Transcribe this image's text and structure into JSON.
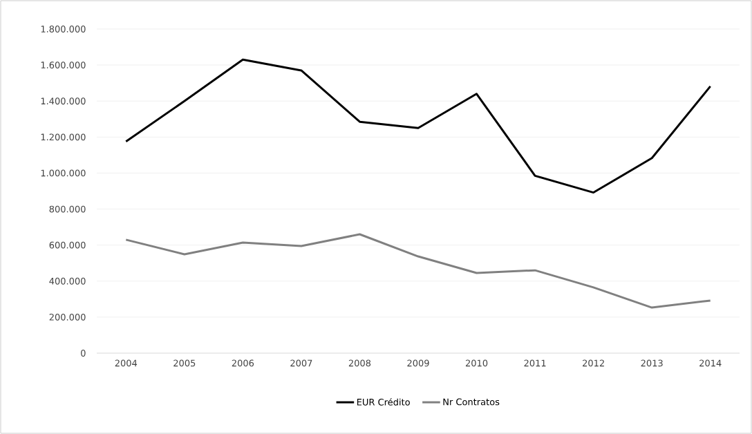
{
  "chart_data": {
    "type": "line",
    "categories": [
      "2004",
      "2005",
      "2006",
      "2007",
      "2008",
      "2009",
      "2010",
      "2011",
      "2012",
      "2013",
      "2014"
    ],
    "series": [
      {
        "name": "EUR Crédito",
        "color": "#000000",
        "values": [
          1175000,
          1400000,
          1630000,
          1570000,
          1285000,
          1250000,
          1440000,
          985000,
          892000,
          1083000,
          1482000
        ]
      },
      {
        "name": "Nr Contratos",
        "color": "#808080",
        "values": [
          630000,
          549000,
          614000,
          595000,
          660000,
          537000,
          445000,
          460000,
          365000,
          253000,
          292000
        ]
      }
    ],
    "ylim": [
      0,
      1800000
    ],
    "yticks": [
      {
        "value": 0,
        "label": "0"
      },
      {
        "value": 200000,
        "label": "200.000"
      },
      {
        "value": 400000,
        "label": "400.000"
      },
      {
        "value": 600000,
        "label": "600.000"
      },
      {
        "value": 800000,
        "label": "800.000"
      },
      {
        "value": 1000000,
        "label": "1.000.000"
      },
      {
        "value": 1200000,
        "label": "1.200.000"
      },
      {
        "value": 1400000,
        "label": "1.400.000"
      },
      {
        "value": 1600000,
        "label": "1.600.000"
      },
      {
        "value": 1800000,
        "label": "1.800.000"
      }
    ],
    "grid": "y",
    "legend": "bottom",
    "marker": "none",
    "line_style": "solid"
  }
}
